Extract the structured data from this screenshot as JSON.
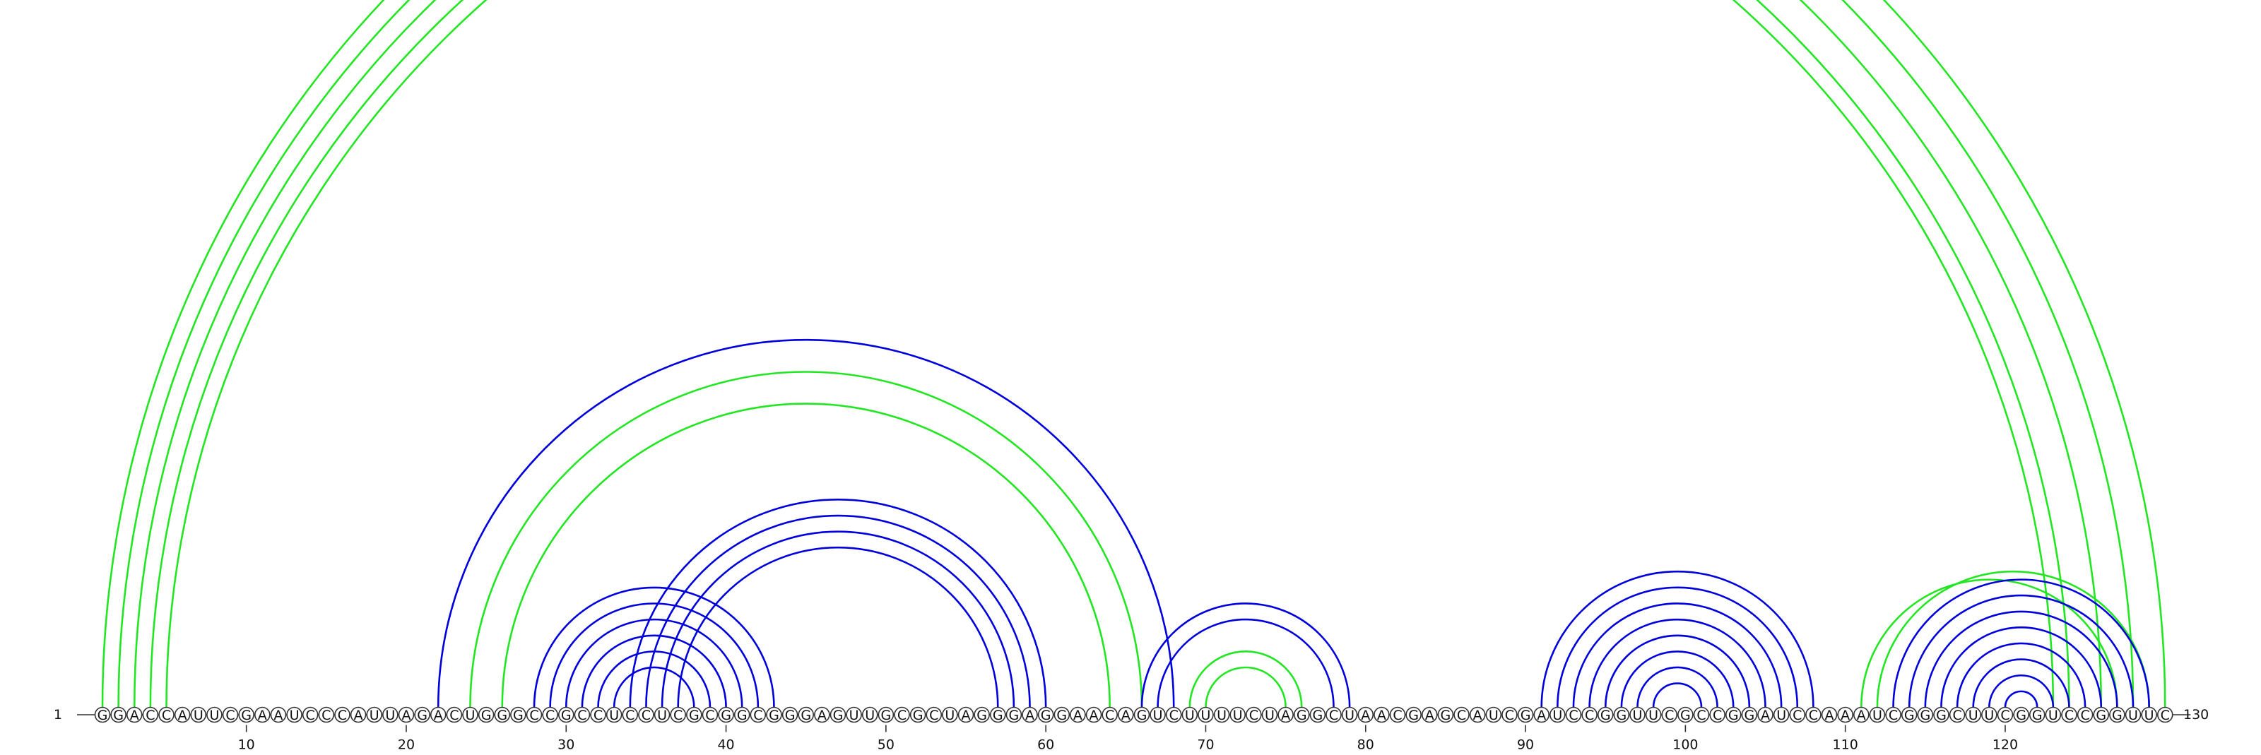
{
  "diagram": {
    "sequence": "GGACCAUUCGAAUCCCAUUAGACUGGGCCGCCUCCUCGCGGCGGGAGUUGCGCUAGGGAGGAACAGUCUUUUCUAGGCUAACGAGCAUCGAUCCGGUUCGCCGGAUCCAAAUCGGGCUUCGGUCCGGUUC",
    "start_label": "1",
    "end_label": "130",
    "tick_labels": [
      "10",
      "20",
      "30",
      "40",
      "50",
      "60",
      "70",
      "80",
      "90",
      "100",
      "110",
      "120"
    ],
    "colors": {
      "blue": "#0000dd",
      "green": "#22e622"
    },
    "arcs": [
      {
        "i": 1,
        "j": 130,
        "color": "green"
      },
      {
        "i": 2,
        "j": 128,
        "color": "green"
      },
      {
        "i": 3,
        "j": 126,
        "color": "green"
      },
      {
        "i": 4,
        "j": 124,
        "color": "green"
      },
      {
        "i": 5,
        "j": 123,
        "color": "green"
      },
      {
        "i": 22,
        "j": 68,
        "color": "blue"
      },
      {
        "i": 24,
        "j": 66,
        "color": "green"
      },
      {
        "i": 26,
        "j": 64,
        "color": "green"
      },
      {
        "i": 28,
        "j": 43,
        "color": "blue"
      },
      {
        "i": 29,
        "j": 42,
        "color": "blue"
      },
      {
        "i": 30,
        "j": 41,
        "color": "blue"
      },
      {
        "i": 31,
        "j": 40,
        "color": "blue"
      },
      {
        "i": 32,
        "j": 39,
        "color": "blue"
      },
      {
        "i": 33,
        "j": 38,
        "color": "blue"
      },
      {
        "i": 34,
        "j": 60,
        "color": "blue"
      },
      {
        "i": 35,
        "j": 59,
        "color": "blue"
      },
      {
        "i": 36,
        "j": 58,
        "color": "blue"
      },
      {
        "i": 37,
        "j": 57,
        "color": "blue"
      },
      {
        "i": 66,
        "j": 79,
        "color": "blue"
      },
      {
        "i": 67,
        "j": 78,
        "color": "blue"
      },
      {
        "i": 69,
        "j": 76,
        "color": "green"
      },
      {
        "i": 70,
        "j": 75,
        "color": "green"
      },
      {
        "i": 91,
        "j": 108,
        "color": "blue"
      },
      {
        "i": 92,
        "j": 107,
        "color": "blue"
      },
      {
        "i": 93,
        "j": 106,
        "color": "blue"
      },
      {
        "i": 94,
        "j": 105,
        "color": "blue"
      },
      {
        "i": 95,
        "j": 104,
        "color": "blue"
      },
      {
        "i": 96,
        "j": 103,
        "color": "blue"
      },
      {
        "i": 97,
        "j": 102,
        "color": "blue"
      },
      {
        "i": 98,
        "j": 101,
        "color": "blue"
      },
      {
        "i": 111,
        "j": 127,
        "color": "green"
      },
      {
        "i": 112,
        "j": 129,
        "color": "green"
      },
      {
        "i": 113,
        "j": 129,
        "color": "blue"
      },
      {
        "i": 114,
        "j": 128,
        "color": "blue"
      },
      {
        "i": 115,
        "j": 127,
        "color": "blue"
      },
      {
        "i": 116,
        "j": 126,
        "color": "blue"
      },
      {
        "i": 117,
        "j": 125,
        "color": "blue"
      },
      {
        "i": 118,
        "j": 124,
        "color": "blue"
      },
      {
        "i": 119,
        "j": 123,
        "color": "blue"
      },
      {
        "i": 120,
        "j": 122,
        "color": "blue"
      }
    ]
  }
}
